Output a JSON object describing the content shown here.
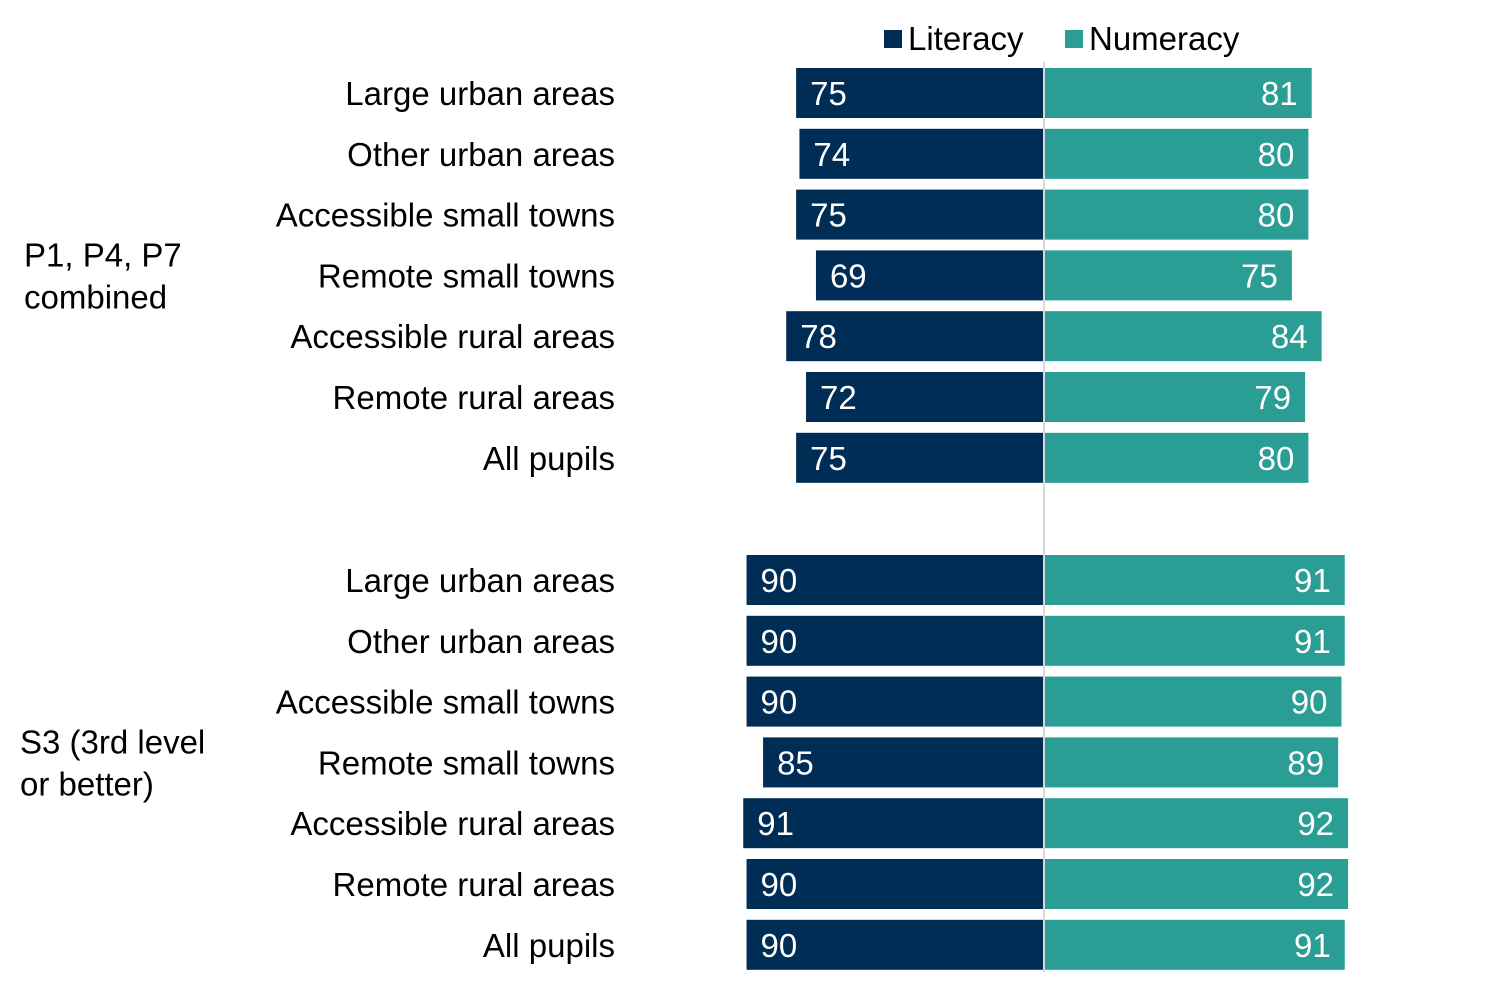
{
  "chart_data": {
    "type": "bar",
    "orientation": "horizontal-diverging",
    "colors": {
      "Literacy": "#002d55",
      "Numeracy": "#2a9d94"
    },
    "legend": {
      "placement": "top-right",
      "items": [
        "Literacy",
        "Numeracy"
      ]
    },
    "axis": {
      "ylim": [
        0,
        100
      ]
    },
    "grid": false,
    "series": [
      {
        "name": "Literacy"
      },
      {
        "name": "Numeracy"
      }
    ],
    "groups": [
      {
        "label": [
          "P1, P4, P7",
          "combined"
        ],
        "categories": [
          "Large urban areas",
          "Other urban areas",
          "Accessible small towns",
          "Remote small towns",
          "Accessible rural areas",
          "Remote rural areas",
          "All pupils"
        ],
        "literacy": [
          75,
          74,
          75,
          69,
          78,
          72,
          75
        ],
        "numeracy": [
          81,
          80,
          80,
          75,
          84,
          79,
          80
        ]
      },
      {
        "label": [
          "S3 (3rd level",
          "or better)"
        ],
        "categories": [
          "Large urban areas",
          "Other urban areas",
          "Accessible small towns",
          "Remote small towns",
          "Accessible rural areas",
          "Remote rural areas",
          "All pupils"
        ],
        "literacy": [
          90,
          90,
          90,
          85,
          91,
          90,
          90
        ],
        "numeracy": [
          91,
          91,
          90,
          89,
          92,
          92,
          91
        ]
      }
    ]
  }
}
